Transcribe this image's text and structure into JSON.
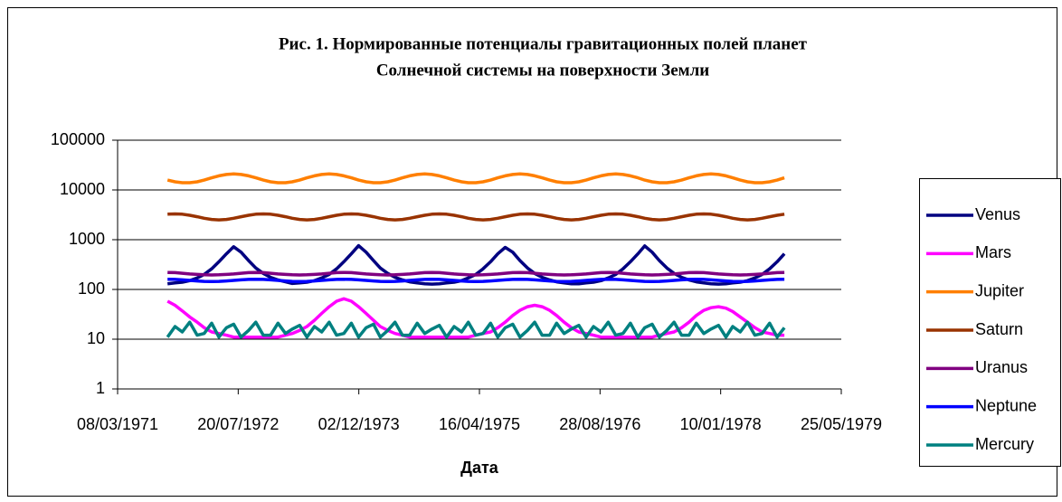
{
  "chart_data": {
    "type": "line",
    "title": "Рис. 1. Нормированные потенциалы гравитационных полей планет",
    "subtitle": "Солнечной системы на поверхности Земли",
    "x_label": "Дата",
    "log_y": true,
    "grid": true,
    "legend": "right",
    "xlim": [
      "08/03/1971",
      "25/05/1979"
    ],
    "xticks": [
      "08/03/1971",
      "20/07/1972",
      "02/12/1973",
      "16/04/1975",
      "28/08/1976",
      "10/01/1978",
      "25/05/1979"
    ],
    "ylim": [
      1,
      100000
    ],
    "yticks": [
      1,
      10,
      100,
      1000,
      10000,
      100000
    ],
    "x": [
      "01/10/1971",
      "01/11/1971",
      "01/12/1971",
      "01/01/1972",
      "01/02/1972",
      "01/03/1972",
      "01/04/1972",
      "01/05/1972",
      "01/06/1972",
      "01/07/1972",
      "01/08/1972",
      "01/09/1972",
      "01/10/1972",
      "01/11/1972",
      "01/12/1972",
      "01/01/1973",
      "01/02/1973",
      "01/03/1973",
      "01/04/1973",
      "01/05/1973",
      "01/06/1973",
      "01/07/1973",
      "01/08/1973",
      "01/09/1973",
      "01/10/1973",
      "01/11/1973",
      "01/12/1973",
      "01/01/1974",
      "01/02/1974",
      "01/03/1974",
      "01/04/1974",
      "01/05/1974",
      "01/06/1974",
      "01/07/1974",
      "01/08/1974",
      "01/09/1974",
      "01/10/1974",
      "01/11/1974",
      "01/12/1974",
      "01/01/1975",
      "01/02/1975",
      "01/03/1975",
      "01/04/1975",
      "01/05/1975",
      "01/06/1975",
      "01/07/1975",
      "01/08/1975",
      "01/09/1975",
      "01/10/1975",
      "01/11/1975",
      "01/12/1975",
      "01/01/1976",
      "01/02/1976",
      "01/03/1976",
      "01/04/1976",
      "01/05/1976",
      "01/06/1976",
      "01/07/1976",
      "01/08/1976",
      "01/09/1976",
      "01/10/1976",
      "01/11/1976",
      "01/12/1976",
      "01/01/1977",
      "01/02/1977",
      "01/03/1977",
      "01/04/1977",
      "01/05/1977",
      "01/06/1977",
      "01/07/1977",
      "01/08/1977",
      "01/09/1977",
      "01/10/1977",
      "01/11/1977",
      "01/12/1977",
      "01/01/1978",
      "01/02/1978",
      "01/03/1978",
      "01/04/1978",
      "01/05/1978",
      "01/06/1978",
      "01/07/1978",
      "01/08/1978",
      "01/09/1978",
      "01/10/1978"
    ],
    "series": [
      {
        "name": "Venus",
        "color": "#000080",
        "values": [
          130,
          135,
          140,
          150,
          170,
          200,
          260,
          360,
          520,
          720,
          560,
          380,
          270,
          210,
          175,
          155,
          142,
          132,
          135,
          140,
          150,
          170,
          200,
          260,
          360,
          520,
          760,
          560,
          380,
          270,
          210,
          175,
          155,
          142,
          135,
          130,
          128,
          130,
          135,
          140,
          150,
          170,
          200,
          260,
          360,
          520,
          700,
          560,
          380,
          270,
          210,
          175,
          155,
          142,
          135,
          130,
          130,
          135,
          140,
          150,
          170,
          200,
          260,
          360,
          520,
          750,
          560,
          380,
          270,
          210,
          175,
          155,
          142,
          135,
          130,
          128,
          130,
          135,
          140,
          150,
          170,
          200,
          260,
          360,
          520
        ]
      },
      {
        "name": "Mars",
        "color": "#ff00ff",
        "values": [
          58,
          48,
          37,
          28,
          22,
          17,
          14,
          13,
          12,
          11,
          11,
          11,
          11,
          11,
          11,
          11,
          12,
          13,
          15,
          18,
          24,
          33,
          45,
          58,
          65,
          58,
          45,
          33,
          24,
          18,
          15,
          13,
          12,
          11,
          11,
          11,
          11,
          11,
          11,
          11,
          11,
          11,
          12,
          13,
          14,
          17,
          22,
          30,
          38,
          45,
          48,
          45,
          38,
          30,
          22,
          17,
          14,
          13,
          12,
          11,
          11,
          11,
          11,
          11,
          11,
          11,
          11,
          12,
          13,
          14,
          17,
          22,
          30,
          38,
          43,
          45,
          42,
          36,
          28,
          22,
          17,
          14,
          13,
          12,
          12
        ]
      },
      {
        "name": "Jupiter",
        "color": "#ff7f00",
        "values": [
          15800,
          14600,
          14000,
          14000,
          14600,
          15800,
          17500,
          19200,
          20500,
          21000,
          20500,
          19200,
          17500,
          15800,
          14600,
          14000,
          14000,
          14600,
          15800,
          17500,
          19200,
          20500,
          21000,
          20500,
          19200,
          17500,
          15800,
          14600,
          14000,
          14000,
          14600,
          15800,
          17500,
          19200,
          20500,
          21000,
          20500,
          19200,
          17500,
          15800,
          14600,
          14000,
          14000,
          14600,
          15800,
          17500,
          19200,
          20500,
          21000,
          20500,
          19200,
          17500,
          15800,
          14600,
          14000,
          14000,
          14600,
          15800,
          17500,
          19200,
          20500,
          21000,
          20500,
          19200,
          17500,
          15800,
          14600,
          14000,
          14000,
          14600,
          15800,
          17500,
          19200,
          20500,
          21000,
          20500,
          19200,
          17500,
          15800,
          14600,
          14000,
          14000,
          14600,
          15800,
          17500
        ]
      },
      {
        "name": "Saturn",
        "color": "#993300",
        "values": [
          3250,
          3300,
          3250,
          3100,
          2900,
          2700,
          2550,
          2500,
          2550,
          2700,
          2900,
          3100,
          3250,
          3300,
          3250,
          3100,
          2900,
          2700,
          2550,
          2500,
          2550,
          2700,
          2900,
          3100,
          3250,
          3300,
          3250,
          3100,
          2900,
          2700,
          2550,
          2500,
          2550,
          2700,
          2900,
          3100,
          3250,
          3300,
          3250,
          3100,
          2900,
          2700,
          2550,
          2500,
          2550,
          2700,
          2900,
          3100,
          3250,
          3300,
          3250,
          3100,
          2900,
          2700,
          2550,
          2500,
          2550,
          2700,
          2900,
          3100,
          3250,
          3300,
          3250,
          3100,
          2900,
          2700,
          2550,
          2500,
          2550,
          2700,
          2900,
          3100,
          3250,
          3300,
          3250,
          3100,
          2900,
          2700,
          2550,
          2500,
          2550,
          2700,
          2900,
          3100,
          3250
        ]
      },
      {
        "name": "Uranus",
        "color": "#800080",
        "values": [
          220,
          218,
          212,
          205,
          200,
          197,
          195,
          197,
          200,
          205,
          212,
          218,
          220,
          218,
          212,
          205,
          200,
          197,
          195,
          197,
          200,
          205,
          212,
          218,
          220,
          218,
          212,
          205,
          200,
          197,
          195,
          197,
          200,
          205,
          212,
          218,
          220,
          218,
          212,
          205,
          200,
          197,
          195,
          197,
          200,
          205,
          212,
          218,
          220,
          218,
          212,
          205,
          200,
          197,
          195,
          197,
          200,
          205,
          212,
          218,
          220,
          218,
          212,
          205,
          200,
          197,
          195,
          197,
          200,
          205,
          212,
          218,
          220,
          218,
          212,
          205,
          200,
          197,
          195,
          197,
          200,
          205,
          212,
          218,
          220
        ]
      },
      {
        "name": "Neptune",
        "color": "#0000ff",
        "values": [
          160,
          159,
          156,
          152,
          148,
          145,
          144,
          145,
          148,
          152,
          156,
          159,
          160,
          159,
          156,
          152,
          148,
          145,
          144,
          145,
          148,
          152,
          156,
          159,
          160,
          159,
          156,
          152,
          148,
          145,
          144,
          145,
          148,
          152,
          156,
          159,
          160,
          159,
          156,
          152,
          148,
          145,
          144,
          145,
          148,
          152,
          156,
          159,
          160,
          159,
          156,
          152,
          148,
          145,
          144,
          145,
          148,
          152,
          156,
          159,
          160,
          159,
          156,
          152,
          148,
          145,
          144,
          145,
          148,
          152,
          156,
          159,
          160,
          159,
          156,
          152,
          148,
          145,
          144,
          145,
          148,
          152,
          156,
          159,
          160
        ]
      },
      {
        "name": "Mercury",
        "color": "#008080",
        "values": [
          11,
          18,
          14,
          22,
          12,
          13,
          21,
          11,
          17,
          20,
          11,
          15,
          22,
          12,
          12,
          21,
          13,
          16,
          19,
          11,
          18,
          14,
          22,
          12,
          13,
          21,
          11,
          17,
          20,
          11,
          15,
          22,
          12,
          12,
          21,
          13,
          16,
          19,
          11,
          18,
          14,
          22,
          12,
          13,
          21,
          11,
          17,
          20,
          11,
          15,
          22,
          12,
          12,
          21,
          13,
          16,
          19,
          11,
          18,
          14,
          22,
          12,
          13,
          21,
          11,
          17,
          20,
          11,
          15,
          22,
          12,
          12,
          21,
          13,
          16,
          19,
          11,
          18,
          14,
          22,
          12,
          13,
          21,
          11,
          17
        ]
      }
    ]
  }
}
